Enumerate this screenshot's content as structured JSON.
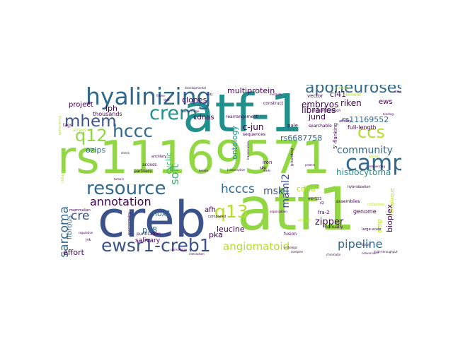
{
  "colors": {
    "purple": "#440154",
    "indigo": "#3b528b",
    "blue": "#31688e",
    "teal": "#21908d",
    "green": "#35b779",
    "lime": "#90d743",
    "yellow": "#b5de2b"
  },
  "words": [
    {
      "id": "atf-1",
      "text": "atf-1",
      "color": "#21908d"
    },
    {
      "id": "atf1",
      "text": "atf1",
      "color": "#90d743"
    },
    {
      "id": "rs11169571",
      "text": "rs11169571",
      "color": "#90d743"
    },
    {
      "id": "creb",
      "text": "creb",
      "color": "#3b528b"
    },
    {
      "id": "hyalinizing",
      "text": "hyalinizing",
      "color": "#31688e"
    },
    {
      "id": "ewsr1-creb1",
      "text": "ewsr1-creb1",
      "color": "#3b528b"
    },
    {
      "id": "camp",
      "text": "camp",
      "color": "#31688e"
    },
    {
      "id": "resource",
      "text": "resource",
      "color": "#31688e"
    },
    {
      "id": "crem",
      "text": "crem",
      "color": "#21908d"
    },
    {
      "id": "mhem",
      "text": "mhem",
      "color": "#3b528b"
    },
    {
      "id": "hccc",
      "text": "hccc",
      "color": "#31688e"
    },
    {
      "id": "q12",
      "text": "q12",
      "color": "#90d743"
    },
    {
      "id": "q13",
      "text": "q13",
      "color": "#b5de2b"
    },
    {
      "id": "aponeuroses",
      "text": "aponeuroses",
      "color": "#31688e"
    },
    {
      "id": "ccs",
      "text": "ccs",
      "color": "#b5de2b"
    },
    {
      "id": "community",
      "text": "community",
      "color": "#31688e"
    },
    {
      "id": "pipeline",
      "text": "pipeline",
      "color": "#31688e"
    },
    {
      "id": "angiomatoid",
      "text": "angiomatoid",
      "color": "#b5de2b"
    },
    {
      "id": "annotation",
      "text": "annotation",
      "color": "#440154"
    },
    {
      "id": "hcccs",
      "text": "hcccs",
      "color": "#31688e"
    },
    {
      "id": "msk1",
      "text": "msk1",
      "color": "#3b528b"
    },
    {
      "id": "sarcoma",
      "text": "sarcoma",
      "color": "#31688e"
    },
    {
      "id": "soft",
      "text": "soft",
      "color": "#35b779"
    },
    {
      "id": "cre",
      "text": "cre",
      "color": "#3b528b"
    },
    {
      "id": "maml2",
      "text": "maml2",
      "color": "#3b528b"
    },
    {
      "id": "histiocytoma",
      "text": "histiocytoma",
      "color": "#21908d"
    },
    {
      "id": "rs11169552",
      "text": "rs11169552",
      "color": "#31688e"
    },
    {
      "id": "rs6687758",
      "text": "rs6687758",
      "color": "#31688e"
    },
    {
      "id": "multiprotein",
      "text": "multiprotein",
      "color": "#440154"
    },
    {
      "id": "embryos",
      "text": "embryos",
      "color": "#440154"
    },
    {
      "id": "libraries",
      "text": "libraries",
      "color": "#440154"
    },
    {
      "id": "riken",
      "text": "riken",
      "color": "#440154"
    },
    {
      "id": "zipper",
      "text": "zipper",
      "color": "#440154"
    },
    {
      "id": "bioplex",
      "text": "bioplex",
      "color": "#440154"
    },
    {
      "id": "leucine",
      "text": "leucine",
      "color": "#440154"
    },
    {
      "id": "c-jun",
      "text": "c-jun",
      "color": "#440154"
    },
    {
      "id": "ontology",
      "text": "ontology",
      "color": "#21908d"
    },
    {
      "id": "nox1",
      "text": "nox1",
      "color": "#31688e"
    },
    {
      "id": "clones",
      "text": "clones",
      "color": "#440154"
    },
    {
      "id": "cdnas",
      "text": "cdnas",
      "color": "#440154"
    },
    {
      "id": "iph",
      "text": "iph",
      "color": "#440154"
    },
    {
      "id": "project",
      "text": "project",
      "color": "#440154"
    },
    {
      "id": "ozips",
      "text": "ozips",
      "color": "#31688e"
    },
    {
      "id": "cyclic",
      "text": "cyclic",
      "color": "#35b779"
    },
    {
      "id": "fibrous",
      "text": "fibrous",
      "color": "#31688e"
    },
    {
      "id": "effort",
      "text": "effort",
      "color": "#440154"
    },
    {
      "id": "p38",
      "text": "p38",
      "color": "#31688e"
    },
    {
      "id": "pka",
      "text": "pka",
      "color": "#440154"
    },
    {
      "id": "afh",
      "text": "afh",
      "color": "#440154"
    },
    {
      "id": "cdna",
      "text": "cdna",
      "color": "#b5de2b"
    },
    {
      "id": "jund",
      "text": "jund",
      "color": "#440154"
    },
    {
      "id": "ews",
      "text": "ews",
      "color": "#440154"
    },
    {
      "id": "cl41",
      "text": "cl41",
      "color": "#440154"
    },
    {
      "id": "full-length",
      "text": "full-length",
      "color": "#440154"
    },
    {
      "id": "amp",
      "text": "amp",
      "color": "#b5de2b"
    },
    {
      "id": "genome",
      "text": "genome",
      "color": "#440154"
    },
    {
      "id": "fra-2",
      "text": "fra-2",
      "color": "#440154"
    },
    {
      "id": "salivary",
      "text": "salivary",
      "color": "#440154"
    },
    {
      "id": "thousands",
      "text": "thousands",
      "color": "#440154"
    },
    {
      "id": "tags",
      "text": "tags",
      "color": "#440154"
    },
    {
      "id": "sequences",
      "text": "sequences",
      "color": "#440154"
    },
    {
      "id": "iron",
      "text": "iron",
      "color": "#440154"
    },
    {
      "id": "pale",
      "text": "pale",
      "color": "#440154"
    },
    {
      "id": "vector",
      "text": "vector",
      "color": "#440154"
    },
    {
      "id": "construct",
      "text": "construct",
      "color": "#440154"
    },
    {
      "id": "element",
      "text": "element",
      "color": "#b5de2b"
    },
    {
      "id": "access",
      "text": "access",
      "color": "#440154"
    },
    {
      "id": "partners",
      "text": "partners",
      "color": "#440154"
    },
    {
      "id": "arrays",
      "text": "arrays",
      "color": "#b5de2b"
    },
    {
      "id": "purification",
      "text": "purification",
      "color": "#440154"
    },
    {
      "id": "mammalian",
      "text": "mammalian",
      "color": "#440154"
    },
    {
      "id": "manually",
      "text": "manually",
      "color": "#440154"
    },
    {
      "id": "assemblies",
      "text": "assemblies",
      "color": "#440154"
    },
    {
      "id": "collection",
      "text": "collection",
      "color": "#b5de2b"
    },
    {
      "id": "intraplaque",
      "text": "intraplaque",
      "color": "#b5de2b"
    },
    {
      "id": "hybridization",
      "text": "hybridization",
      "color": "#440154"
    },
    {
      "id": "compared",
      "text": "compared",
      "color": "#440154"
    },
    {
      "id": "searchable",
      "text": "searchable",
      "color": "#440154"
    },
    {
      "id": "rearrangement",
      "text": "rearrangement",
      "color": "#440154"
    },
    {
      "id": "large-scale",
      "text": "large-scale",
      "color": "#440154"
    },
    {
      "id": "fusion",
      "text": "fusion",
      "color": "#440154"
    },
    {
      "id": "5-flanking",
      "text": "5'-flanking",
      "color": "#440154"
    },
    {
      "id": "affinity",
      "text": "affinity",
      "color": "#440154"
    },
    {
      "id": "mobility",
      "text": "mobility",
      "color": "#b5de2b"
    },
    {
      "id": "ancillary",
      "text": "ancillary",
      "color": "#440154"
    },
    {
      "id": "spectrometry",
      "text": "spectrometry",
      "color": "#440154"
    },
    {
      "id": "high-throughput",
      "text": "high-throughput",
      "color": "#440154"
    },
    {
      "id": "phosphorylation",
      "text": "phosphorylation",
      "color": "#440154"
    },
    {
      "id": "chromatin",
      "text": "chromatin",
      "color": "#440154"
    },
    {
      "id": "sequencing",
      "text": "sequencing",
      "color": "#440154"
    },
    {
      "id": "collagen",
      "text": "collagen",
      "color": "#b5de2b"
    },
    {
      "id": "library",
      "text": "library",
      "color": "#440154"
    },
    {
      "id": "developmental",
      "text": "developmental",
      "color": "#440154"
    },
    {
      "id": "pericellular",
      "text": "pericellular",
      "color": "#440154"
    },
    {
      "id": "interaction",
      "text": "interaction",
      "color": "#440154"
    },
    {
      "id": "conversion",
      "text": "conversion",
      "color": "#440154"
    },
    {
      "id": "organization",
      "text": "organization",
      "color": "#440154"
    },
    {
      "id": "generating",
      "text": "generating",
      "color": "#b5de2b"
    },
    {
      "id": "tumors",
      "text": "tumors",
      "color": "#440154"
    },
    {
      "id": "reads",
      "text": "reads",
      "color": "#440154"
    },
    {
      "id": "kinase",
      "text": "kinase",
      "color": "#440154"
    },
    {
      "id": "protein",
      "text": "protein",
      "color": "#440154"
    },
    {
      "id": "transcription",
      "text": "transcription",
      "color": "#440154"
    },
    {
      "id": "domain",
      "text": "domain",
      "color": "#b5de2b"
    },
    {
      "id": "complex",
      "text": "complex",
      "color": "#440154"
    },
    {
      "id": "orthologs",
      "text": "orthologs",
      "color": "#440154"
    },
    {
      "id": "regulation",
      "text": "regulation",
      "color": "#440154"
    },
    {
      "id": "hemorrhage",
      "text": "hemorrhage",
      "color": "#440154"
    },
    {
      "id": "mir-133",
      "text": "mir-133",
      "color": "#440154"
    },
    {
      "id": "sbp",
      "text": "sbp",
      "color": "#440154"
    },
    {
      "id": "jnk",
      "text": "jnk",
      "color": "#440154"
    },
    {
      "id": "il2",
      "text": "il2",
      "color": "#440154"
    },
    {
      "id": "g-banding",
      "text": "g-banding",
      "color": "#440154"
    },
    {
      "id": "translocation",
      "text": "translocation",
      "color": "#440154"
    },
    {
      "id": "promoter",
      "text": "promoter",
      "color": "#b5de2b"
    },
    {
      "id": "frame",
      "text": "frame",
      "color": "#440154"
    },
    {
      "id": "shift",
      "text": "shift",
      "color": "#440154"
    },
    {
      "id": "cells",
      "text": "cells",
      "color": "#440154"
    },
    {
      "id": "stress",
      "text": "stress",
      "color": "#440154"
    },
    {
      "id": "dimer",
      "text": "dimer",
      "color": "#440154"
    },
    {
      "id": "binding",
      "text": "binding",
      "color": "#440154"
    },
    {
      "id": "mutants",
      "text": "mutants",
      "color": "#440154"
    },
    {
      "id": "sixty",
      "text": "sixty",
      "color": "#440154"
    }
  ]
}
